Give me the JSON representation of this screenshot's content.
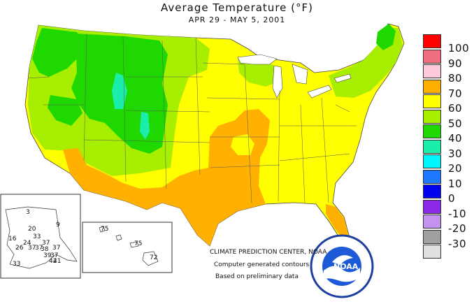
{
  "title": "Average Temperature (°F)",
  "subtitle": "APR 29 - MAY  5, 2001",
  "credit": {
    "line1": "CLIMATE PREDICTION CENTER, NOAA",
    "line2": "Computer generated contours",
    "line3": "Based on preliminary data"
  },
  "logo_text": "NOAA",
  "legend": [
    {
      "label": "100",
      "color": "#ff0000"
    },
    {
      "label": "90",
      "color": "#ef6f7e"
    },
    {
      "label": "80",
      "color": "#ffcadb"
    },
    {
      "label": "70",
      "color": "#ffb000"
    },
    {
      "label": "60",
      "color": "#ffff00"
    },
    {
      "label": "50",
      "color": "#a8ee00"
    },
    {
      "label": "40",
      "color": "#1fd800"
    },
    {
      "label": "30",
      "color": "#1aeeaa"
    },
    {
      "label": "20",
      "color": "#00f5ff"
    },
    {
      "label": "10",
      "color": "#1e78ff"
    },
    {
      "label": "0",
      "color": "#0000f0"
    },
    {
      "label": "-10",
      "color": "#8a28e6"
    },
    {
      "label": "-20",
      "color": "#c493f0"
    },
    {
      "label": "-30",
      "color": "#a0a0a0"
    },
    {
      "label": "",
      "color": "#e0e0e0"
    }
  ],
  "alaska_values": [
    "3",
    "9",
    "20",
    "33",
    "16",
    "24",
    "37",
    "26",
    "37",
    "37",
    "38",
    "37",
    "37",
    "39",
    "41",
    "33",
    "42"
  ],
  "hawaii_values": [
    "75",
    "75",
    "72"
  ]
}
